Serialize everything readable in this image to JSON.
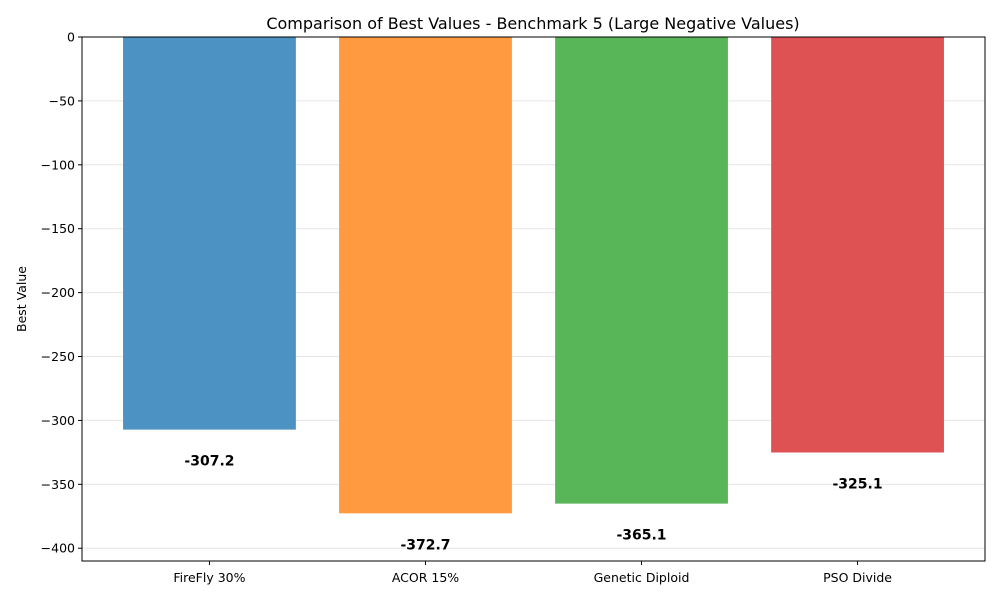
{
  "chart_data": {
    "type": "bar",
    "title": "Comparison of Best Values - Benchmark 5 (Large Negative Values)",
    "xlabel": "",
    "ylabel": "Best Value",
    "categories": [
      "FireFly 30%",
      "ACOR 15%",
      "Genetic Diploid",
      "PSO Divide"
    ],
    "values": [
      -307.2,
      -372.7,
      -365.1,
      -325.1
    ],
    "data_labels": [
      "-307.2",
      "-372.7",
      "-365.1",
      "-325.1"
    ],
    "colors": [
      "#4c93c3",
      "#ff9a41",
      "#58b558",
      "#de5253"
    ],
    "ylim": [
      -410,
      0
    ],
    "yticks": [
      0,
      -50,
      -100,
      -150,
      -200,
      -250,
      -300,
      -350,
      -400
    ],
    "ytick_labels": [
      "0",
      "−50",
      "−100",
      "−150",
      "−200",
      "−250",
      "−300",
      "−350",
      "−400"
    ],
    "grid": true
  }
}
